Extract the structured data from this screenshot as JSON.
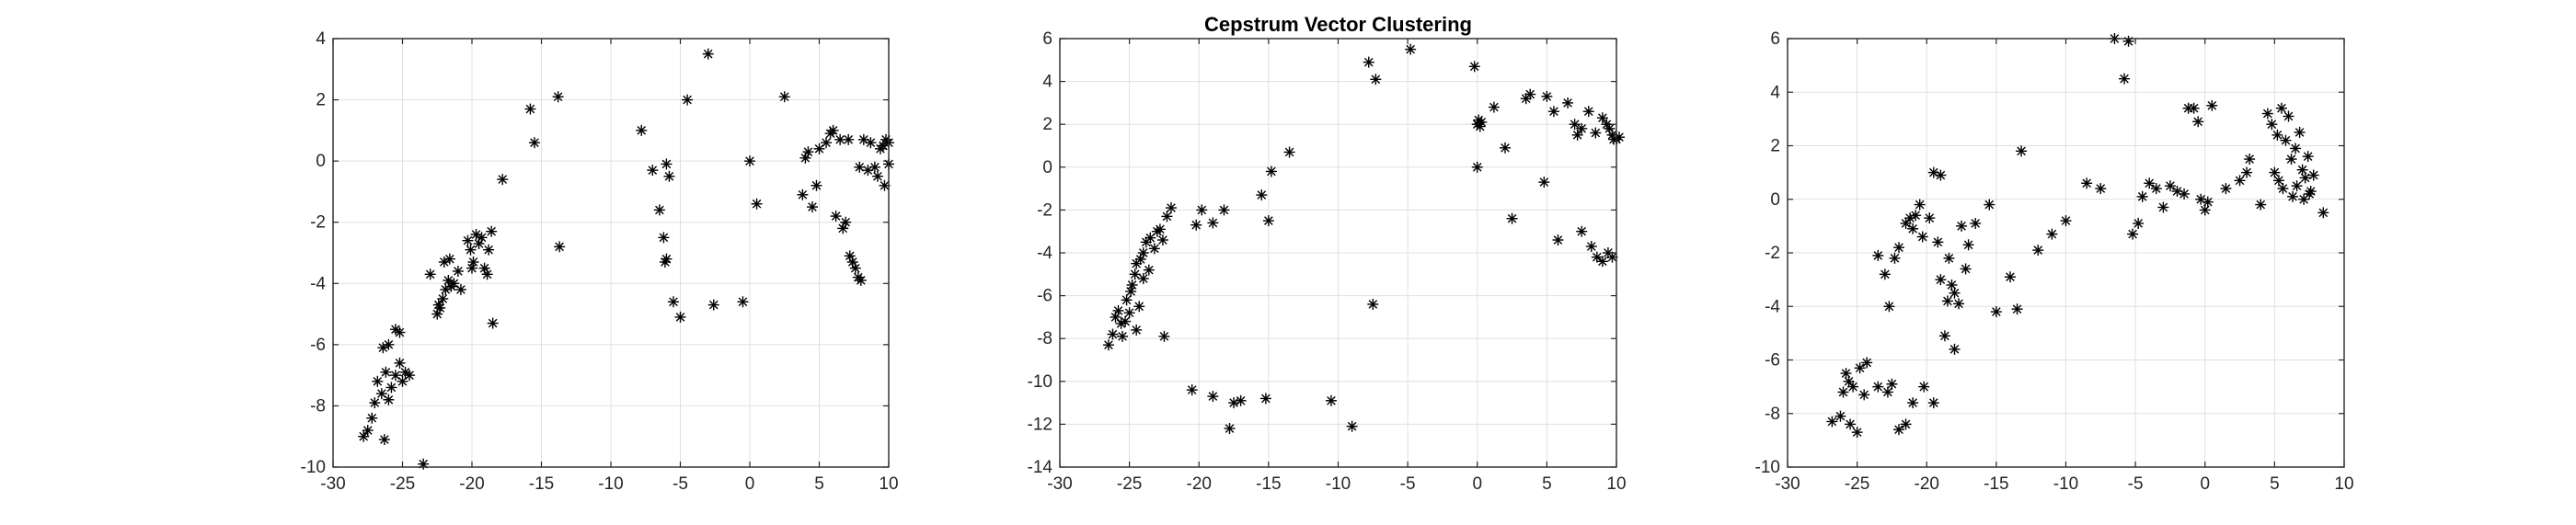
{
  "figure": {
    "background": "#ffffff",
    "marker_color": "#000000",
    "marker": "asterisk"
  },
  "chart_data": [
    {
      "type": "scatter",
      "title": "",
      "xlabel": "",
      "ylabel": "",
      "xlim": [
        -30,
        10
      ],
      "ylim": [
        -10,
        4
      ],
      "grid": true,
      "xticks": [
        -30,
        -25,
        -20,
        -15,
        -10,
        -5,
        0,
        5,
        10
      ],
      "yticks": [
        -10,
        -8,
        -6,
        -4,
        -2,
        0,
        2,
        4
      ],
      "points": [
        [
          -27.8,
          -9.0
        ],
        [
          -27.5,
          -8.8
        ],
        [
          -27.2,
          -8.4
        ],
        [
          -27.0,
          -7.9
        ],
        [
          -26.8,
          -7.2
        ],
        [
          -26.5,
          -7.6
        ],
        [
          -26.3,
          -9.1
        ],
        [
          -26.2,
          -6.9
        ],
        [
          -26.0,
          -7.8
        ],
        [
          -25.8,
          -7.4
        ],
        [
          -25.5,
          -7.0
        ],
        [
          -25.2,
          -6.6
        ],
        [
          -25.0,
          -7.2
        ],
        [
          -24.8,
          -6.9
        ],
        [
          -26.4,
          -6.1
        ],
        [
          -26.0,
          -6.0
        ],
        [
          -25.5,
          -5.5
        ],
        [
          -25.2,
          -5.6
        ],
        [
          -24.5,
          -7.0
        ],
        [
          -23.5,
          -9.9
        ],
        [
          -23.0,
          -3.7
        ],
        [
          -22.5,
          -5.0
        ],
        [
          -22.3,
          -4.8
        ],
        [
          -22.1,
          -4.5
        ],
        [
          -21.9,
          -4.2
        ],
        [
          -21.7,
          -3.9
        ],
        [
          -21.5,
          -4.1
        ],
        [
          -21.3,
          -4.0
        ],
        [
          -21.0,
          -3.6
        ],
        [
          -22.0,
          -3.3
        ],
        [
          -21.6,
          -3.2
        ],
        [
          -20.8,
          -4.2
        ],
        [
          -22.4,
          -4.7
        ],
        [
          -20.3,
          -2.6
        ],
        [
          -20.1,
          -2.9
        ],
        [
          -19.9,
          -3.3
        ],
        [
          -20.0,
          -3.5
        ],
        [
          -19.7,
          -2.4
        ],
        [
          -19.5,
          -2.7
        ],
        [
          -19.3,
          -2.5
        ],
        [
          -19.1,
          -3.5
        ],
        [
          -18.9,
          -3.7
        ],
        [
          -18.6,
          -2.3
        ],
        [
          -18.8,
          -2.9
        ],
        [
          -18.5,
          -5.3
        ],
        [
          -17.8,
          -0.6
        ],
        [
          -15.8,
          1.7
        ],
        [
          -15.5,
          0.6
        ],
        [
          -13.8,
          2.1
        ],
        [
          -13.7,
          -2.8
        ],
        [
          -7.8,
          1.0
        ],
        [
          -7.0,
          -0.3
        ],
        [
          -6.5,
          -1.6
        ],
        [
          -6.0,
          -0.1
        ],
        [
          -6.2,
          -2.5
        ],
        [
          -6.0,
          -3.2
        ],
        [
          -6.1,
          -3.3
        ],
        [
          -5.8,
          -0.5
        ],
        [
          -5.5,
          -4.6
        ],
        [
          -5.0,
          -5.1
        ],
        [
          -4.5,
          2.0
        ],
        [
          -3.0,
          3.5
        ],
        [
          -2.6,
          -4.7
        ],
        [
          -0.5,
          -4.6
        ],
        [
          0.0,
          0.0
        ],
        [
          0.5,
          -1.4
        ],
        [
          2.5,
          2.1
        ],
        [
          3.8,
          -1.1
        ],
        [
          4.0,
          0.1
        ],
        [
          4.2,
          0.3
        ],
        [
          4.5,
          -1.5
        ],
        [
          4.8,
          -0.8
        ],
        [
          5.0,
          0.4
        ],
        [
          5.5,
          0.6
        ],
        [
          5.8,
          0.9
        ],
        [
          6.0,
          1.0
        ],
        [
          6.2,
          -1.8
        ],
        [
          6.5,
          0.7
        ],
        [
          6.7,
          -2.2
        ],
        [
          6.9,
          -2.0
        ],
        [
          7.1,
          0.7
        ],
        [
          7.2,
          -3.1
        ],
        [
          7.4,
          -3.3
        ],
        [
          7.6,
          -3.5
        ],
        [
          7.8,
          -3.8
        ],
        [
          8.0,
          -3.9
        ],
        [
          7.9,
          -0.2
        ],
        [
          8.2,
          0.7
        ],
        [
          8.5,
          -0.3
        ],
        [
          8.7,
          0.6
        ],
        [
          9.0,
          -0.2
        ],
        [
          9.2,
          -0.5
        ],
        [
          9.4,
          0.4
        ],
        [
          9.6,
          0.5
        ],
        [
          9.8,
          0.7
        ],
        [
          10.0,
          0.6
        ],
        [
          10.0,
          -0.1
        ],
        [
          9.7,
          -0.8
        ]
      ]
    },
    {
      "type": "scatter",
      "title": "Cepstrum Vector Clustering",
      "xlabel": "",
      "ylabel": "",
      "xlim": [
        -30,
        10
      ],
      "ylim": [
        -14,
        6
      ],
      "grid": true,
      "xticks": [
        -30,
        -25,
        -20,
        -15,
        -10,
        -5,
        0,
        5,
        10
      ],
      "yticks": [
        -14,
        -12,
        -10,
        -8,
        -6,
        -4,
        -2,
        0,
        2,
        4,
        6
      ],
      "points": [
        [
          -26.5,
          -8.3
        ],
        [
          -26.2,
          -7.8
        ],
        [
          -26.0,
          -7.0
        ],
        [
          -25.8,
          -6.7
        ],
        [
          -25.5,
          -7.9
        ],
        [
          -25.3,
          -7.2
        ],
        [
          -25.0,
          -6.8
        ],
        [
          -25.2,
          -6.2
        ],
        [
          -24.8,
          -5.5
        ],
        [
          -24.6,
          -5.0
        ],
        [
          -24.5,
          -7.6
        ],
        [
          -24.3,
          -6.5
        ],
        [
          -24.9,
          -5.8
        ],
        [
          -25.6,
          -7.3
        ],
        [
          -24.2,
          -4.3
        ],
        [
          -24.0,
          -4.0
        ],
        [
          -23.8,
          -3.5
        ],
        [
          -23.5,
          -3.3
        ],
        [
          -23.2,
          -3.8
        ],
        [
          -23.0,
          -3.0
        ],
        [
          -22.8,
          -2.9
        ],
        [
          -22.6,
          -3.4
        ],
        [
          -24.5,
          -4.5
        ],
        [
          -24.0,
          -5.2
        ],
        [
          -23.6,
          -4.8
        ],
        [
          -22.3,
          -2.3
        ],
        [
          -22.0,
          -1.9
        ],
        [
          -22.5,
          -7.9
        ],
        [
          -20.2,
          -2.7
        ],
        [
          -19.8,
          -2.0
        ],
        [
          -19.0,
          -2.6
        ],
        [
          -18.2,
          -2.0
        ],
        [
          -15.5,
          -1.3
        ],
        [
          -15.0,
          -2.5
        ],
        [
          -14.8,
          -0.2
        ],
        [
          -13.5,
          0.7
        ],
        [
          -20.5,
          -10.4
        ],
        [
          -19.0,
          -10.7
        ],
        [
          -17.8,
          -12.2
        ],
        [
          -17.5,
          -11.0
        ],
        [
          -17.0,
          -10.9
        ],
        [
          -15.2,
          -10.8
        ],
        [
          -10.5,
          -10.9
        ],
        [
          -9.0,
          -12.1
        ],
        [
          -7.8,
          4.9
        ],
        [
          -7.3,
          4.1
        ],
        [
          -7.5,
          -6.4
        ],
        [
          -4.8,
          5.5
        ],
        [
          -0.2,
          4.7
        ],
        [
          0.0,
          2.0
        ],
        [
          0.1,
          2.2
        ],
        [
          0.2,
          1.9
        ],
        [
          0.3,
          2.1
        ],
        [
          0.0,
          0.0
        ],
        [
          1.2,
          2.8
        ],
        [
          2.0,
          0.9
        ],
        [
          2.5,
          -2.4
        ],
        [
          3.5,
          3.2
        ],
        [
          3.8,
          3.4
        ],
        [
          5.0,
          3.3
        ],
        [
          5.5,
          2.6
        ],
        [
          6.5,
          3.0
        ],
        [
          7.0,
          2.0
        ],
        [
          7.5,
          1.8
        ],
        [
          8.0,
          2.6
        ],
        [
          8.5,
          1.6
        ],
        [
          9.0,
          2.3
        ],
        [
          9.3,
          2.0
        ],
        [
          9.5,
          1.8
        ],
        [
          9.7,
          1.5
        ],
        [
          9.8,
          1.3
        ],
        [
          10.0,
          1.3
        ],
        [
          10.2,
          1.4
        ],
        [
          7.2,
          1.5
        ],
        [
          5.8,
          -3.4
        ],
        [
          7.5,
          -3.0
        ],
        [
          8.2,
          -3.7
        ],
        [
          8.6,
          -4.2
        ],
        [
          9.0,
          -4.4
        ],
        [
          9.4,
          -4.0
        ],
        [
          9.7,
          -4.2
        ],
        [
          4.8,
          -0.7
        ]
      ]
    },
    {
      "type": "scatter",
      "title": "",
      "xlabel": "",
      "ylabel": "",
      "xlim": [
        -30,
        10
      ],
      "ylim": [
        -10,
        6
      ],
      "grid": true,
      "xticks": [
        -30,
        -25,
        -20,
        -15,
        -10,
        -5,
        0,
        5,
        10
      ],
      "yticks": [
        -10,
        -8,
        -6,
        -4,
        -2,
        0,
        2,
        4,
        6
      ],
      "points": [
        [
          -26.8,
          -8.3
        ],
        [
          -26.2,
          -8.1
        ],
        [
          -26.0,
          -7.2
        ],
        [
          -25.8,
          -6.5
        ],
        [
          -25.5,
          -8.4
        ],
        [
          -25.3,
          -7.0
        ],
        [
          -25.0,
          -8.7
        ],
        [
          -24.8,
          -6.3
        ],
        [
          -24.5,
          -7.3
        ],
        [
          -24.3,
          -6.1
        ],
        [
          -25.6,
          -6.8
        ],
        [
          -23.5,
          -7.0
        ],
        [
          -22.8,
          -7.2
        ],
        [
          -22.5,
          -6.9
        ],
        [
          -22.0,
          -8.6
        ],
        [
          -21.5,
          -8.4
        ],
        [
          -21.0,
          -7.6
        ],
        [
          -20.2,
          -7.0
        ],
        [
          -19.5,
          -7.6
        ],
        [
          -23.5,
          -2.1
        ],
        [
          -23.0,
          -2.8
        ],
        [
          -22.7,
          -4.0
        ],
        [
          -22.3,
          -2.2
        ],
        [
          -22.0,
          -1.8
        ],
        [
          -21.5,
          -0.9
        ],
        [
          -21.2,
          -0.7
        ],
        [
          -21.0,
          -1.1
        ],
        [
          -20.8,
          -0.6
        ],
        [
          -20.5,
          -0.2
        ],
        [
          -20.3,
          -1.4
        ],
        [
          -19.8,
          -0.7
        ],
        [
          -19.5,
          1.0
        ],
        [
          -19.0,
          0.9
        ],
        [
          -19.2,
          -1.6
        ],
        [
          -19.0,
          -3.0
        ],
        [
          -18.7,
          -5.1
        ],
        [
          -18.4,
          -2.2
        ],
        [
          -18.2,
          -3.2
        ],
        [
          -18.0,
          -3.5
        ],
        [
          -17.7,
          -3.9
        ],
        [
          -18.5,
          -3.8
        ],
        [
          -18.0,
          -5.6
        ],
        [
          -17.5,
          -1.0
        ],
        [
          -17.2,
          -2.6
        ],
        [
          -17.0,
          -1.7
        ],
        [
          -16.5,
          -0.9
        ],
        [
          -15.5,
          -0.2
        ],
        [
          -15.0,
          -4.2
        ],
        [
          -14.0,
          -2.9
        ],
        [
          -13.5,
          -4.1
        ],
        [
          -13.2,
          1.8
        ],
        [
          -12.0,
          -1.9
        ],
        [
          -11.0,
          -1.3
        ],
        [
          -10.0,
          -0.8
        ],
        [
          -8.5,
          0.6
        ],
        [
          -7.5,
          0.4
        ],
        [
          -6.5,
          6.0
        ],
        [
          -5.8,
          4.5
        ],
        [
          -5.5,
          5.9
        ],
        [
          -5.2,
          -1.3
        ],
        [
          -4.8,
          -0.9
        ],
        [
          -4.5,
          0.1
        ],
        [
          -4.0,
          0.6
        ],
        [
          -3.5,
          0.4
        ],
        [
          -3.0,
          -0.3
        ],
        [
          -2.5,
          0.5
        ],
        [
          -2.0,
          0.3
        ],
        [
          -1.5,
          0.2
        ],
        [
          -1.2,
          3.4
        ],
        [
          -0.8,
          3.4
        ],
        [
          -0.5,
          2.9
        ],
        [
          -0.3,
          0.0
        ],
        [
          0.0,
          -0.4
        ],
        [
          0.2,
          -0.1
        ],
        [
          0.5,
          3.5
        ],
        [
          1.5,
          0.4
        ],
        [
          2.5,
          0.7
        ],
        [
          3.0,
          1.0
        ],
        [
          3.2,
          1.5
        ],
        [
          4.0,
          -0.2
        ],
        [
          4.5,
          3.2
        ],
        [
          4.8,
          2.8
        ],
        [
          5.0,
          1.0
        ],
        [
          5.2,
          2.4
        ],
        [
          5.5,
          3.4
        ],
        [
          5.8,
          2.2
        ],
        [
          6.0,
          3.1
        ],
        [
          6.2,
          1.5
        ],
        [
          6.5,
          1.9
        ],
        [
          6.8,
          2.5
        ],
        [
          7.0,
          1.1
        ],
        [
          7.2,
          0.8
        ],
        [
          7.4,
          1.6
        ],
        [
          7.6,
          0.3
        ],
        [
          7.8,
          0.9
        ],
        [
          8.5,
          -0.5
        ],
        [
          5.3,
          0.7
        ],
        [
          5.6,
          0.4
        ],
        [
          6.3,
          0.1
        ],
        [
          6.6,
          0.5
        ],
        [
          7.1,
          0.0
        ],
        [
          7.5,
          0.2
        ]
      ]
    }
  ]
}
